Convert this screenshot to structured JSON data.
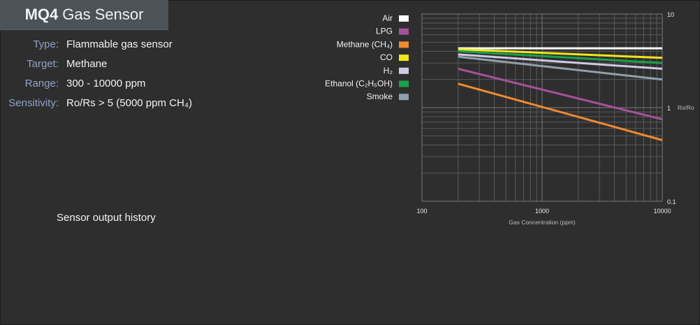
{
  "header": {
    "model": "MQ4",
    "title": "Gas Sensor"
  },
  "specs": [
    {
      "label": "Type:",
      "value": "Flammable gas sensor"
    },
    {
      "label": "Target:",
      "value": "Methane"
    },
    {
      "label": "Range:",
      "value": "300 - 10000 ppm"
    },
    {
      "label": "Sensitivity:",
      "value": "Ro/Rs > 5 (5000 ppm CH₄)"
    }
  ],
  "history_label": "Sensor output history",
  "chart_data": {
    "type": "line",
    "xlabel": "Gas Concentration (ppm)",
    "ylabel": "Rs/Ro",
    "x_scale": "log",
    "y_scale": "log",
    "xlim": [
      100,
      10000
    ],
    "ylim": [
      0.1,
      10
    ],
    "x_ticks": [
      {
        "value": 100,
        "label": "100"
      },
      {
        "value": 1000,
        "label": "1000"
      },
      {
        "value": 10000,
        "label": "10000"
      }
    ],
    "y_ticks": [
      {
        "value": 10,
        "label": "10"
      },
      {
        "value": 1,
        "label": "1"
      },
      {
        "value": 0.1,
        "label": "0.1"
      }
    ],
    "grid": true,
    "legend_position": "left",
    "series": [
      {
        "name": "Air",
        "color": "#ffffff",
        "x": [
          200,
          10000
        ],
        "y": [
          4.3,
          4.3
        ]
      },
      {
        "name": "LPG",
        "color": "#a4529a",
        "x": [
          200,
          10000
        ],
        "y": [
          2.6,
          0.75
        ]
      },
      {
        "name": "Methane (CH₄)",
        "color": "#f08a2e",
        "x": [
          200,
          10000
        ],
        "y": [
          1.8,
          0.45
        ]
      },
      {
        "name": "CO",
        "color": "#f2e51c",
        "x": [
          200,
          10000
        ],
        "y": [
          4.2,
          3.4
        ]
      },
      {
        "name": "H₂",
        "color": "#cfcbe2",
        "x": [
          200,
          10000
        ],
        "y": [
          3.7,
          2.6
        ]
      },
      {
        "name": "Ethanol (C₂H₅OH)",
        "color": "#18a24a",
        "x": [
          200,
          10000
        ],
        "y": [
          4.0,
          3.0
        ]
      },
      {
        "name": "Smoke",
        "color": "#8fa1ad",
        "x": [
          200,
          10000
        ],
        "y": [
          3.5,
          2.0
        ]
      }
    ]
  }
}
